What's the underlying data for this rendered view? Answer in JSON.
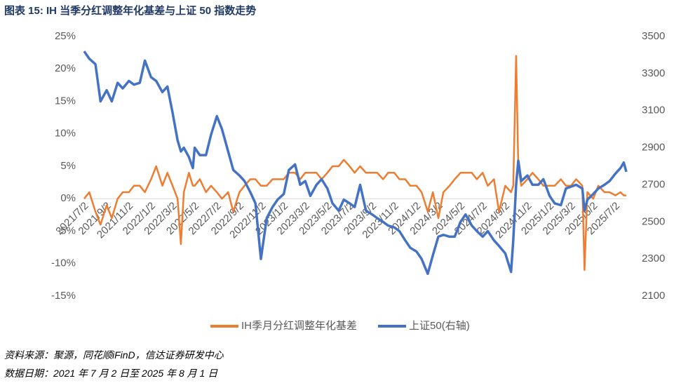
{
  "chart_data": {
    "type": "line",
    "title": "图表 15:  IH 当季分红调整年化基差与上证 50 指数走势",
    "source": "资料来源：聚源，同花顺iFinD，信达证券研发中心",
    "note": "数据日期：2021 年 7 月 2 日至 2025 年 8 月 1 日",
    "legend": "bottom",
    "x": [
      "2021/7/2",
      "2021/7/16",
      "2021/8/2",
      "2021/8/16",
      "2021/9/2",
      "2021/9/16",
      "2021/10/2",
      "2021/10/16",
      "2021/11/2",
      "2021/11/16",
      "2021/12/2",
      "2021/12/16",
      "2022/1/2",
      "2022/1/16",
      "2022/2/2",
      "2022/2/16",
      "2022/3/2",
      "2022/3/16",
      "2022/3/25",
      "2022/4/2",
      "2022/4/16",
      "2022/4/27",
      "2022/5/2",
      "2022/5/16",
      "2022/6/2",
      "2022/6/16",
      "2022/7/2",
      "2022/7/16",
      "2022/8/2",
      "2022/8/16",
      "2022/9/2",
      "2022/9/16",
      "2022/10/2",
      "2022/10/16",
      "2022/10/31",
      "2022/11/16",
      "2022/12/2",
      "2022/12/16",
      "2023/1/2",
      "2023/1/16",
      "2023/2/2",
      "2023/2/16",
      "2023/3/2",
      "2023/3/16",
      "2023/4/2",
      "2023/4/16",
      "2023/5/2",
      "2023/5/16",
      "2023/6/2",
      "2023/6/16",
      "2023/7/2",
      "2023/7/16",
      "2023/7/31",
      "2023/8/16",
      "2023/9/2",
      "2023/9/16",
      "2023/10/2",
      "2023/10/16",
      "2023/11/2",
      "2023/11/16",
      "2023/12/2",
      "2023/12/16",
      "2024/1/2",
      "2024/1/16",
      "2024/2/2",
      "2024/2/16",
      "2024/3/2",
      "2024/3/16",
      "2024/4/2",
      "2024/4/16",
      "2024/5/2",
      "2024/5/16",
      "2024/6/2",
      "2024/6/16",
      "2024/7/2",
      "2024/7/16",
      "2024/8/2",
      "2024/8/16",
      "2024/9/2",
      "2024/9/18",
      "2024/9/24",
      "2024/10/2",
      "2024/10/8",
      "2024/10/16",
      "2024/11/2",
      "2024/11/16",
      "2024/12/2",
      "2024/12/16",
      "2025/1/2",
      "2025/1/16",
      "2025/2/2",
      "2025/2/16",
      "2025/3/2",
      "2025/3/16",
      "2025/4/2",
      "2025/4/8",
      "2025/4/16",
      "2025/5/2",
      "2025/5/16",
      "2025/6/2",
      "2025/6/16",
      "2025/7/2",
      "2025/7/16",
      "2025/7/25",
      "2025/8/1"
    ],
    "series": [
      {
        "name": "IH季月分红调整年化基差",
        "color": "#ed7d31",
        "axis": "y",
        "values": [
          0,
          1,
          -2,
          -4,
          -1,
          -3,
          0,
          1,
          1,
          2,
          2,
          1,
          3,
          5,
          2,
          4,
          2,
          0,
          -7,
          1,
          4,
          2,
          2,
          3,
          1,
          2,
          1,
          0,
          1,
          -2,
          1,
          2,
          3,
          3,
          2,
          2,
          3,
          3,
          3,
          4,
          4,
          3,
          4,
          4,
          4,
          3,
          4,
          5,
          5,
          6,
          5,
          4,
          5,
          4,
          4,
          4,
          3,
          4,
          4,
          3,
          3,
          2,
          2,
          1,
          -2,
          1,
          -3,
          1,
          2,
          3,
          4,
          4,
          4,
          3,
          4,
          2,
          3,
          -2,
          2,
          1,
          2,
          22,
          5,
          2,
          3,
          4,
          3,
          2,
          2,
          2,
          3,
          2,
          2,
          3,
          2,
          -11,
          1,
          0,
          2,
          1,
          1,
          0.5,
          1,
          0.5,
          0.5
        ]
      },
      {
        "name": "上证50(右轴)",
        "color": "#4472c4",
        "axis": "y2",
        "values": [
          3420,
          3380,
          3350,
          3150,
          3210,
          3150,
          3250,
          3220,
          3260,
          3240,
          3250,
          3370,
          3280,
          3260,
          3200,
          3230,
          3090,
          2940,
          2880,
          2900,
          2850,
          2790,
          2900,
          2860,
          2860,
          2970,
          3070,
          3000,
          2880,
          2780,
          2750,
          2720,
          2660,
          2600,
          2300,
          2520,
          2580,
          2620,
          2650,
          2780,
          2810,
          2700,
          2720,
          2640,
          2700,
          2730,
          2680,
          2600,
          2560,
          2620,
          2600,
          2580,
          2700,
          2560,
          2540,
          2520,
          2500,
          2480,
          2470,
          2450,
          2400,
          2360,
          2340,
          2300,
          2220,
          2320,
          2420,
          2430,
          2420,
          2420,
          2500,
          2540,
          2480,
          2450,
          2420,
          2450,
          2400,
          2370,
          2330,
          2230,
          2400,
          2700,
          2830,
          2720,
          2750,
          2700,
          2700,
          2730,
          2640,
          2600,
          2590,
          2680,
          2690,
          2700,
          2680,
          2560,
          2620,
          2650,
          2680,
          2700,
          2720,
          2760,
          2790,
          2820,
          2770
        ]
      }
    ],
    "xlim": [
      "2021/7/2",
      "2025/8/1"
    ],
    "xticks": [
      "2021/7/2",
      "2021/9/2",
      "2021/11/2",
      "2022/1/2",
      "2022/3/2",
      "2022/5/2",
      "2022/7/2",
      "2022/9/2",
      "2022/11/2",
      "2023/1/2",
      "2023/3/2",
      "2023/5/2",
      "2023/7/2",
      "2023/9/2",
      "2023/11/2",
      "2024/1/2",
      "2024/3/2",
      "2024/5/2",
      "2024/7/2",
      "2024/9/2",
      "2024/11/2",
      "2025/1/2",
      "2025/3/2",
      "2025/5/2",
      "2025/7/2"
    ],
    "ylim": [
      -15,
      25
    ],
    "yticks": [
      {
        "value": -15,
        "label": "-15%"
      },
      {
        "value": -10,
        "label": "-10%"
      },
      {
        "value": -5,
        "label": "-5%"
      },
      {
        "value": 0,
        "label": "0%"
      },
      {
        "value": 5,
        "label": "5%"
      },
      {
        "value": 10,
        "label": "10%"
      },
      {
        "value": 15,
        "label": "15%"
      },
      {
        "value": 20,
        "label": "20%"
      },
      {
        "value": 25,
        "label": "25%"
      }
    ],
    "y2lim": [
      2100,
      3500
    ],
    "y2ticks": [
      2100,
      2300,
      2500,
      2700,
      2900,
      3100,
      3300,
      3500
    ],
    "grid": false
  }
}
